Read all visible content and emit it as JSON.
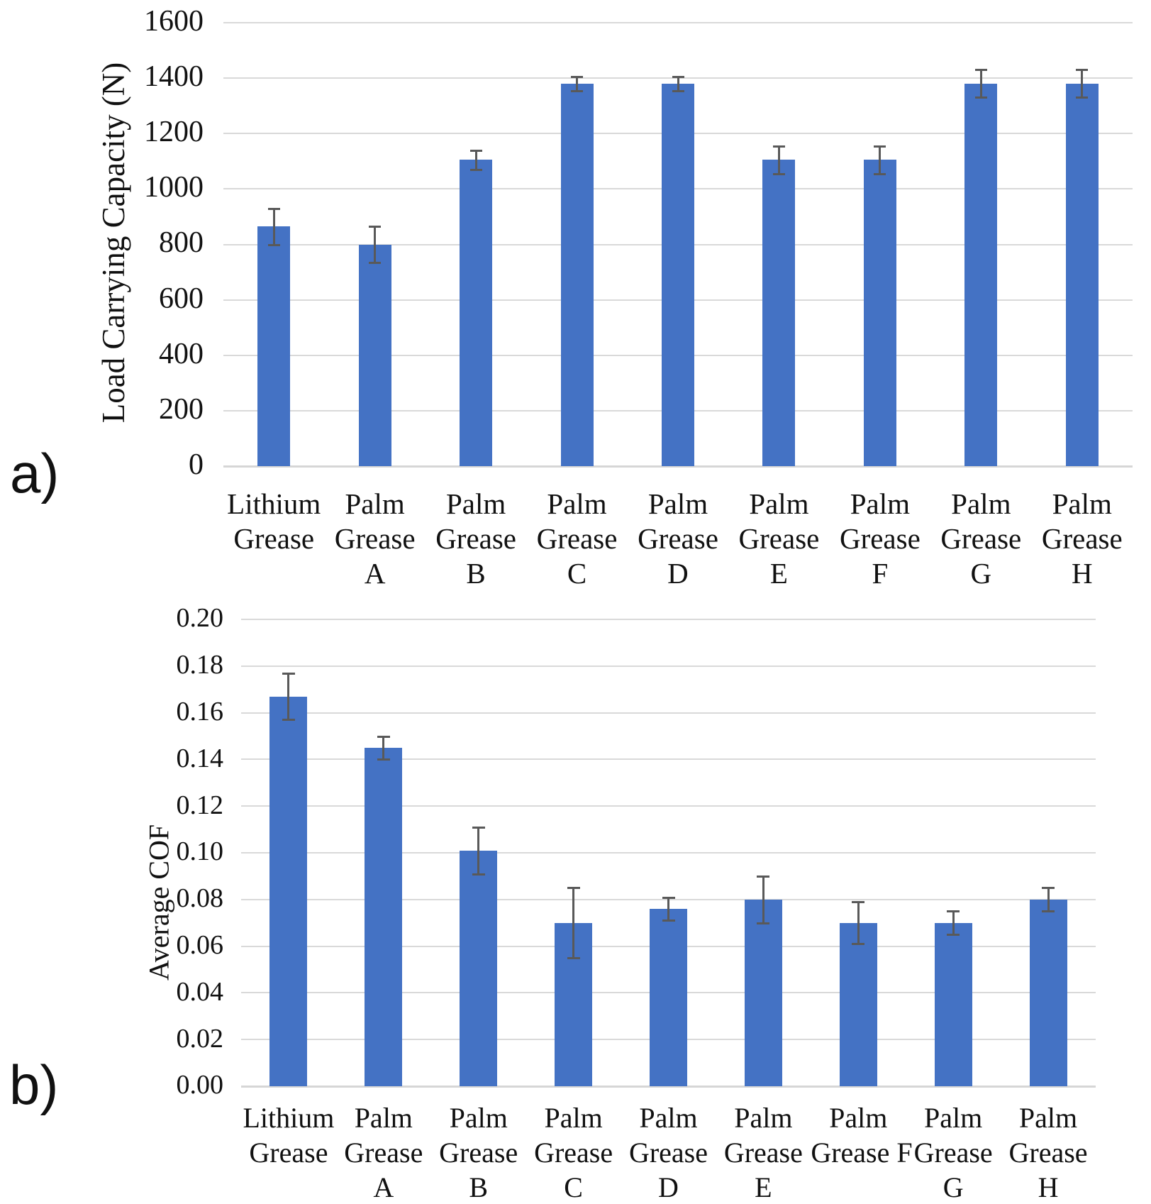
{
  "page": {
    "background": "#ffffff"
  },
  "chart_data": [
    {
      "id": "a",
      "type": "bar",
      "panel_label": "a)",
      "title": "",
      "xlabel": "",
      "ylabel": "Load Carrying Capacity (N)",
      "ylim": [
        0,
        1600
      ],
      "ytick_step": 200,
      "ytick_labels": [
        "0",
        "200",
        "400",
        "600",
        "800",
        "1000",
        "1200",
        "1400",
        "1600"
      ],
      "grid": "horizontal",
      "legend": "none",
      "bar_color": "#4472C4",
      "error_color": "#595959",
      "gridline_color": "#D9D9D9",
      "categories": [
        "Lithium Grease",
        "Palm Grease A",
        "Palm Grease B",
        "Palm Grease C",
        "Palm Grease D",
        "Palm Grease E",
        "Palm Grease F",
        "Palm Grease G",
        "Palm Grease H"
      ],
      "category_label_lines": [
        [
          "Lithium",
          "Grease"
        ],
        [
          "Palm",
          "Grease",
          "A"
        ],
        [
          "Palm",
          "Grease",
          "B"
        ],
        [
          "Palm",
          "Grease",
          "C"
        ],
        [
          "Palm",
          "Grease",
          "D"
        ],
        [
          "Palm",
          "Grease",
          "E"
        ],
        [
          "Palm",
          "Grease",
          "F"
        ],
        [
          "Palm",
          "Grease",
          "G"
        ],
        [
          "Palm",
          "Grease",
          "H"
        ]
      ],
      "values": [
        865,
        800,
        1105,
        1380,
        1380,
        1105,
        1105,
        1380,
        1380
      ],
      "error_bars": [
        65,
        65,
        35,
        25,
        25,
        50,
        50,
        50,
        50
      ]
    },
    {
      "id": "b",
      "type": "bar",
      "panel_label": "b)",
      "title": "",
      "xlabel": "",
      "ylabel": "Average COF",
      "ylim": [
        0,
        0.2
      ],
      "ytick_step": 0.02,
      "ytick_labels": [
        "0.00",
        "0.02",
        "0.04",
        "0.06",
        "0.08",
        "0.10",
        "0.12",
        "0.14",
        "0.16",
        "0.18",
        "0.20"
      ],
      "grid": "horizontal",
      "legend": "none",
      "bar_color": "#4472C4",
      "error_color": "#595959",
      "gridline_color": "#D9D9D9",
      "categories": [
        "Lithium Grease",
        "Palm Grease A",
        "Palm Grease B",
        "Palm Grease C",
        "Palm Grease D",
        "Palm Grease E",
        "Palm Grease F",
        "Palm Grease G",
        "Palm Grease H"
      ],
      "category_label_lines": [
        [
          "Lithium",
          "Grease"
        ],
        [
          "Palm",
          "Grease",
          "A"
        ],
        [
          "Palm",
          "Grease",
          "B"
        ],
        [
          "Palm",
          "Grease",
          "C"
        ],
        [
          "Palm",
          "Grease",
          "D"
        ],
        [
          "Palm",
          "Grease",
          "E"
        ],
        [
          "Palm",
          "Grease F"
        ],
        [
          "Palm",
          "Grease",
          "G"
        ],
        [
          "Palm",
          "Grease",
          "H"
        ]
      ],
      "values": [
        0.167,
        0.145,
        0.101,
        0.07,
        0.076,
        0.08,
        0.07,
        0.07,
        0.08
      ],
      "error_bars": [
        0.01,
        0.005,
        0.01,
        0.015,
        0.005,
        0.01,
        0.009,
        0.005,
        0.005
      ]
    }
  ]
}
